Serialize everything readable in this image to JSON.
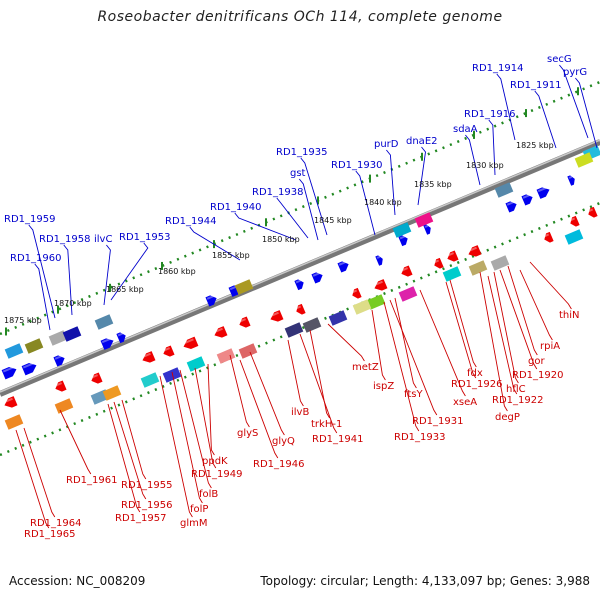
{
  "title": "Roseobacter denitrificans OCh 114, complete genome",
  "footer": {
    "accession": "Accession: NC_008209",
    "summary": "Topology: circular; Length: 4,133,097 bp; Genes: 3,988"
  },
  "colors": {
    "label_top": "#0000cc",
    "label_bottom": "#cc0000",
    "forward": "#0000ee",
    "reverse": "#ee0000",
    "ruler": "#228822",
    "backbone": "#777777"
  },
  "scale_labels": [
    "1875 kbp",
    "1870 kbp",
    "1865 kbp",
    "1860 kbp",
    "1855 kbp",
    "1850 kbp",
    "1845 kbp",
    "1840 kbp",
    "1835 kbp",
    "1830 kbp",
    "1825 kbp"
  ],
  "top_labels": [
    "secG",
    "pyrG",
    "RD1_1914",
    "RD1_1911",
    "RD1_1916",
    "sdaA",
    "dnaE2",
    "purD",
    "RD1_1930",
    "RD1_1935",
    "gst",
    "RD1_1938",
    "RD1_1940",
    "RD1_1944",
    "RD1_1959",
    "RD1_1958",
    "ilvC",
    "RD1_1953",
    "RD1_1960"
  ],
  "bottom_labels": [
    "thiN",
    "rpiA",
    "gor",
    "RD1_1920",
    "hflC",
    "RD1_1922",
    "degP",
    "fdx",
    "RD1_1926",
    "xseA",
    "ftsY",
    "RD1_1931",
    "ispZ",
    "RD1_1933",
    "metZ",
    "trkH-1",
    "RD1_1941",
    "ilvB",
    "glyQ",
    "glyS",
    "RD1_1946",
    "ppdK",
    "RD1_1949",
    "folB",
    "folP",
    "glmM",
    "RD1_1955",
    "RD1_1956",
    "RD1_1957",
    "RD1_1961",
    "RD1_1964",
    "RD1_1965"
  ]
}
